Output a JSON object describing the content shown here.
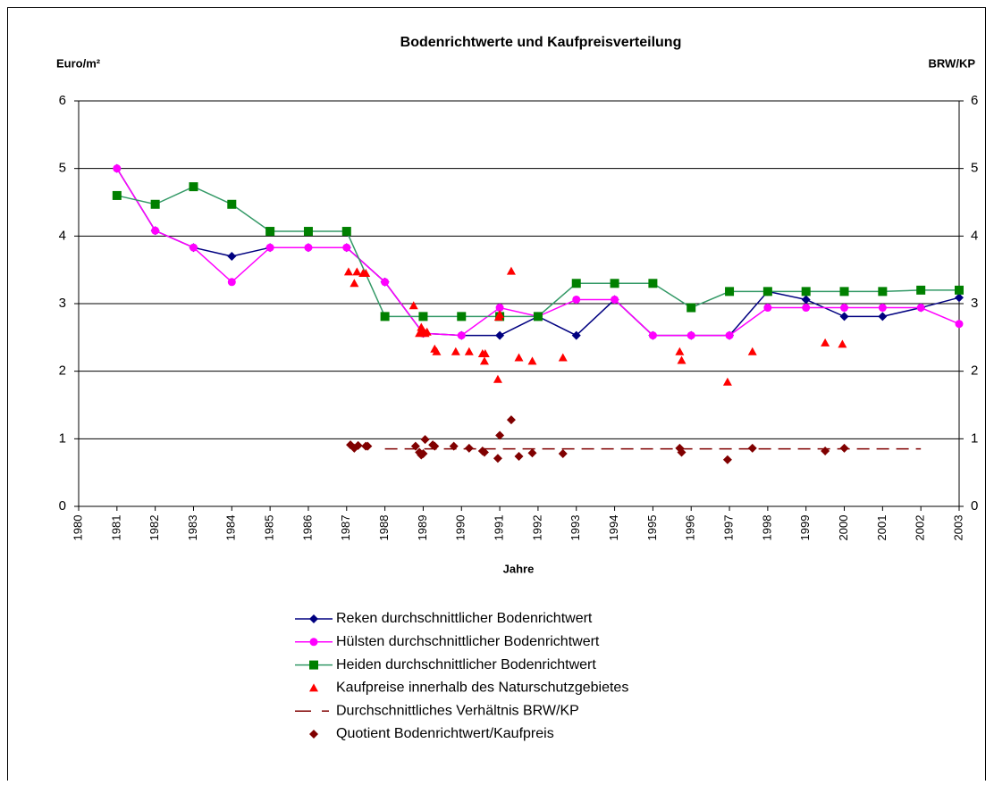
{
  "chart_data": {
    "type": "line",
    "title": "Bodenrichtwerte und Kaufpreisverteilung",
    "y_label": "Euro/m²",
    "y2_label": "BRW/KP",
    "x_label": "Jahre",
    "xlim": [
      1980,
      2003
    ],
    "xticks": [
      1980,
      1981,
      1982,
      1983,
      1984,
      1985,
      1986,
      1987,
      1988,
      1989,
      1990,
      1991,
      1992,
      1993,
      1994,
      1995,
      1996,
      1997,
      1998,
      1999,
      2000,
      2001,
      2002,
      2003
    ],
    "ylim": [
      0,
      6
    ],
    "yticks": [
      0,
      1,
      2,
      3,
      4,
      5,
      6
    ],
    "y2lim": [
      0,
      6
    ],
    "y2ticks": [
      0,
      1,
      2,
      3,
      4,
      5,
      6
    ],
    "grid": true,
    "series": [
      {
        "name": "Reken durchschnittlicher Bodenrichtwert",
        "color": "#000080",
        "marker": "diamond",
        "line": "solid",
        "x": [
          1981,
          1982,
          1983,
          1984,
          1985,
          1986,
          1987,
          1988,
          1989,
          1990,
          1991,
          1992,
          1993,
          1994,
          1995,
          1996,
          1997,
          1998,
          1999,
          2000,
          2001,
          2002,
          2003
        ],
        "values": [
          5,
          4.08,
          3.83,
          3.7,
          3.83,
          3.83,
          3.83,
          3.32,
          2.56,
          2.53,
          2.53,
          2.81,
          2.53,
          3.06,
          2.53,
          2.53,
          2.53,
          3.18,
          3.06,
          2.81,
          2.81,
          2.94,
          3.09
        ]
      },
      {
        "name": "Hülsten durchschnittlicher Bodenrichtwert",
        "color": "#ff00ff",
        "marker": "circle",
        "line": "solid",
        "x": [
          1981,
          1982,
          1983,
          1984,
          1985,
          1986,
          1987,
          1988,
          1989,
          1990,
          1991,
          1992,
          1993,
          1994,
          1995,
          1996,
          1997,
          1998,
          1999,
          2000,
          2001,
          2002,
          2003
        ],
        "values": [
          5,
          4.08,
          3.83,
          3.32,
          3.83,
          3.83,
          3.83,
          3.32,
          2.56,
          2.53,
          2.94,
          2.81,
          3.06,
          3.06,
          2.53,
          2.53,
          2.53,
          2.94,
          2.94,
          2.94,
          2.94,
          2.94,
          2.7
        ]
      },
      {
        "name": "Heiden durchschnittlicher Bodenrichtwert",
        "color": "#008000",
        "marker": "square",
        "line": "solid",
        "line_color": "#339966",
        "x": [
          1981,
          1982,
          1983,
          1984,
          1985,
          1986,
          1987,
          1988,
          1989,
          1990,
          1991,
          1992,
          1993,
          1994,
          1995,
          1996,
          1997,
          1998,
          1999,
          2000,
          2001,
          2002,
          2003
        ],
        "values": [
          4.6,
          4.47,
          4.73,
          4.47,
          4.07,
          4.07,
          4.07,
          2.81,
          2.81,
          2.81,
          2.81,
          2.81,
          3.3,
          3.3,
          3.3,
          2.94,
          3.18,
          3.18,
          3.18,
          3.18,
          3.18,
          3.2,
          3.2
        ]
      },
      {
        "name": "Kaufpreise innerhalb des Naturschutzgebietes",
        "color": "#ff0000",
        "marker": "triangle",
        "line": "none",
        "x": [
          1987.05,
          1987.2,
          1987.27,
          1987.43,
          1987.5,
          1988.75,
          1988.95,
          1989.0,
          1989.05,
          1988.9,
          1989.1,
          1989.3,
          1989.35,
          1989.85,
          1990.2,
          1990.55,
          1990.6,
          1990.62,
          1990.95,
          1991.0,
          1990.97,
          1991.3,
          1991.5,
          1991.85,
          1992.65,
          1995.7,
          1995.75,
          1996.95,
          1997.6,
          1999.5,
          1999.95
        ],
        "values": [
          3.47,
          3.3,
          3.47,
          3.45,
          3.45,
          2.97,
          2.65,
          2.6,
          2.56,
          2.56,
          2.58,
          2.33,
          2.29,
          2.29,
          2.29,
          2.26,
          2.15,
          2.26,
          1.88,
          2.84,
          2.8,
          3.48,
          2.2,
          2.15,
          2.2,
          2.29,
          2.16,
          1.84,
          2.29,
          2.42,
          2.4
        ]
      },
      {
        "name": "Durchschnittliches Verhältnis BRW/KP",
        "color": "#800000",
        "marker": "none",
        "line": "dashed",
        "axis": "y2",
        "x": [
          1988,
          2002
        ],
        "values": [
          0.85,
          0.85
        ]
      },
      {
        "name": "Quotient Bodenrichtwert/Kaufpreis",
        "color": "#800000",
        "marker": "diamond",
        "line": "none",
        "axis": "y2",
        "x": [
          1987.1,
          1987.2,
          1987.3,
          1987.5,
          1987.55,
          1988.8,
          1988.9,
          1988.95,
          1989.0,
          1989.05,
          1989.25,
          1989.3,
          1989.8,
          1990.2,
          1990.55,
          1990.6,
          1990.95,
          1991.0,
          1991.3,
          1991.5,
          1991.85,
          1992.65,
          1995.7,
          1995.75,
          1996.95,
          1997.6,
          1999.5,
          2000.0
        ],
        "values": [
          0.91,
          0.86,
          0.9,
          0.89,
          0.89,
          0.89,
          0.8,
          0.76,
          0.78,
          0.99,
          0.91,
          0.89,
          0.89,
          0.86,
          0.82,
          0.8,
          0.71,
          1.05,
          1.28,
          0.74,
          0.79,
          0.78,
          0.86,
          0.8,
          0.69,
          0.86,
          0.82,
          0.86
        ]
      }
    ]
  }
}
